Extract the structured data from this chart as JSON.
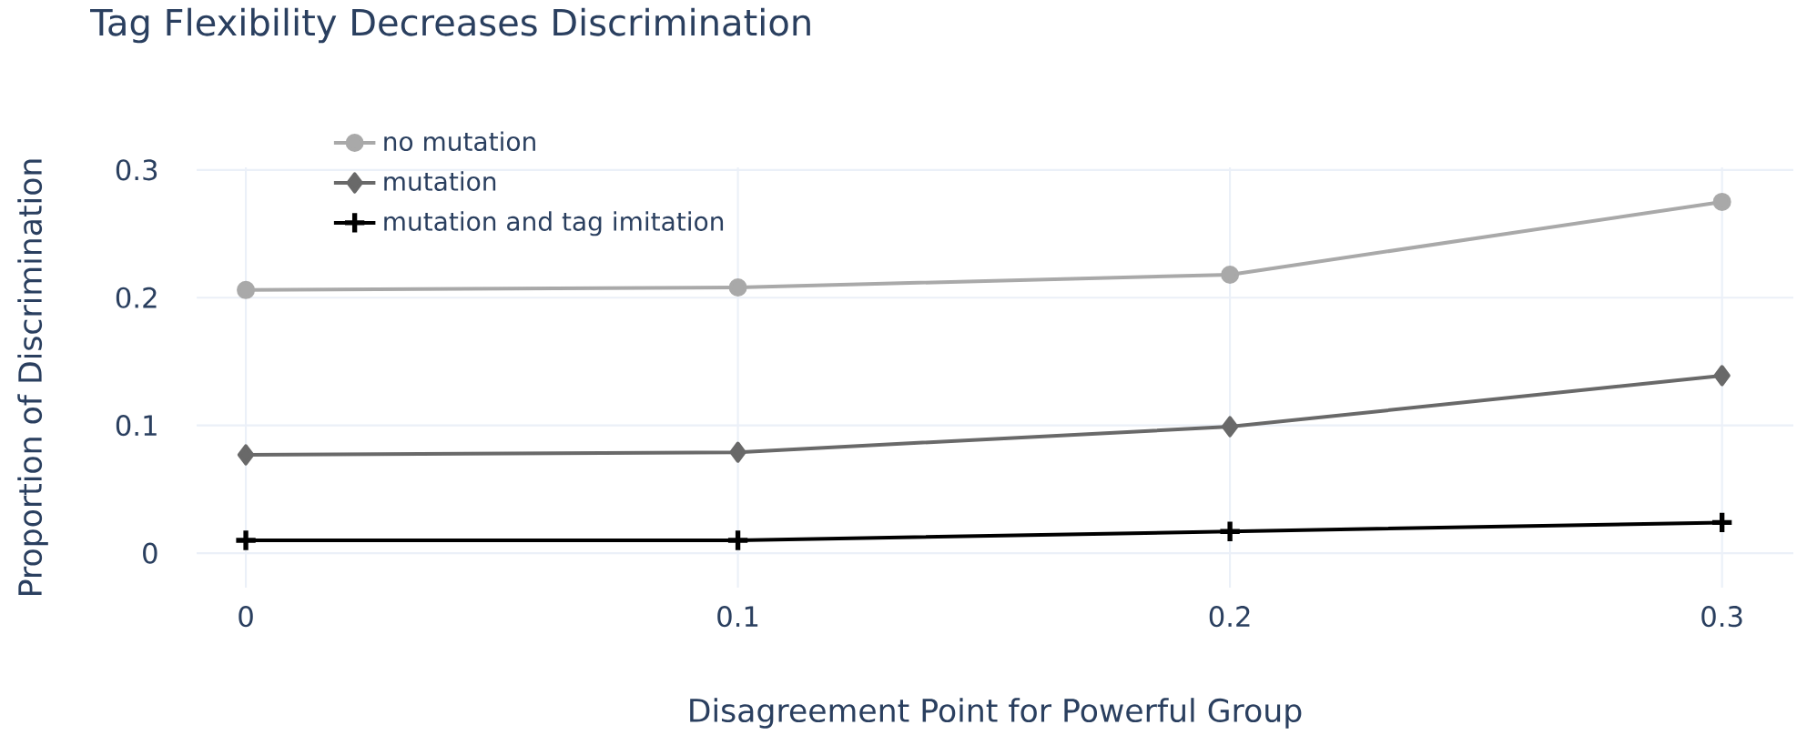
{
  "chart_data": {
    "type": "line",
    "title": "Tag Flexibility Decreases Discrimination",
    "xlabel": "Disagreement Point for Powerful Group",
    "ylabel": "Proportion of Discrimination",
    "x": [
      0,
      0.1,
      0.2,
      0.3
    ],
    "series": [
      {
        "name": "no mutation",
        "color": "#a9a9a9",
        "marker": "circle",
        "values": [
          0.206,
          0.208,
          0.218,
          0.275
        ]
      },
      {
        "name": "mutation",
        "color": "#696969",
        "marker": "diamond",
        "values": [
          0.077,
          0.079,
          0.099,
          0.139
        ]
      },
      {
        "name": "mutation and tag imitation",
        "color": "#000000",
        "marker": "cross",
        "values": [
          0.01,
          0.01,
          0.017,
          0.024
        ]
      }
    ],
    "xlim": [
      -0.01,
      0.3145
    ],
    "ylim": [
      -0.027,
      0.302
    ],
    "xticks": [
      0,
      0.1,
      0.2,
      0.3
    ],
    "yticks": [
      0,
      0.1,
      0.2,
      0.3
    ],
    "grid": true,
    "legend": "top left",
    "line_style": "solid"
  }
}
